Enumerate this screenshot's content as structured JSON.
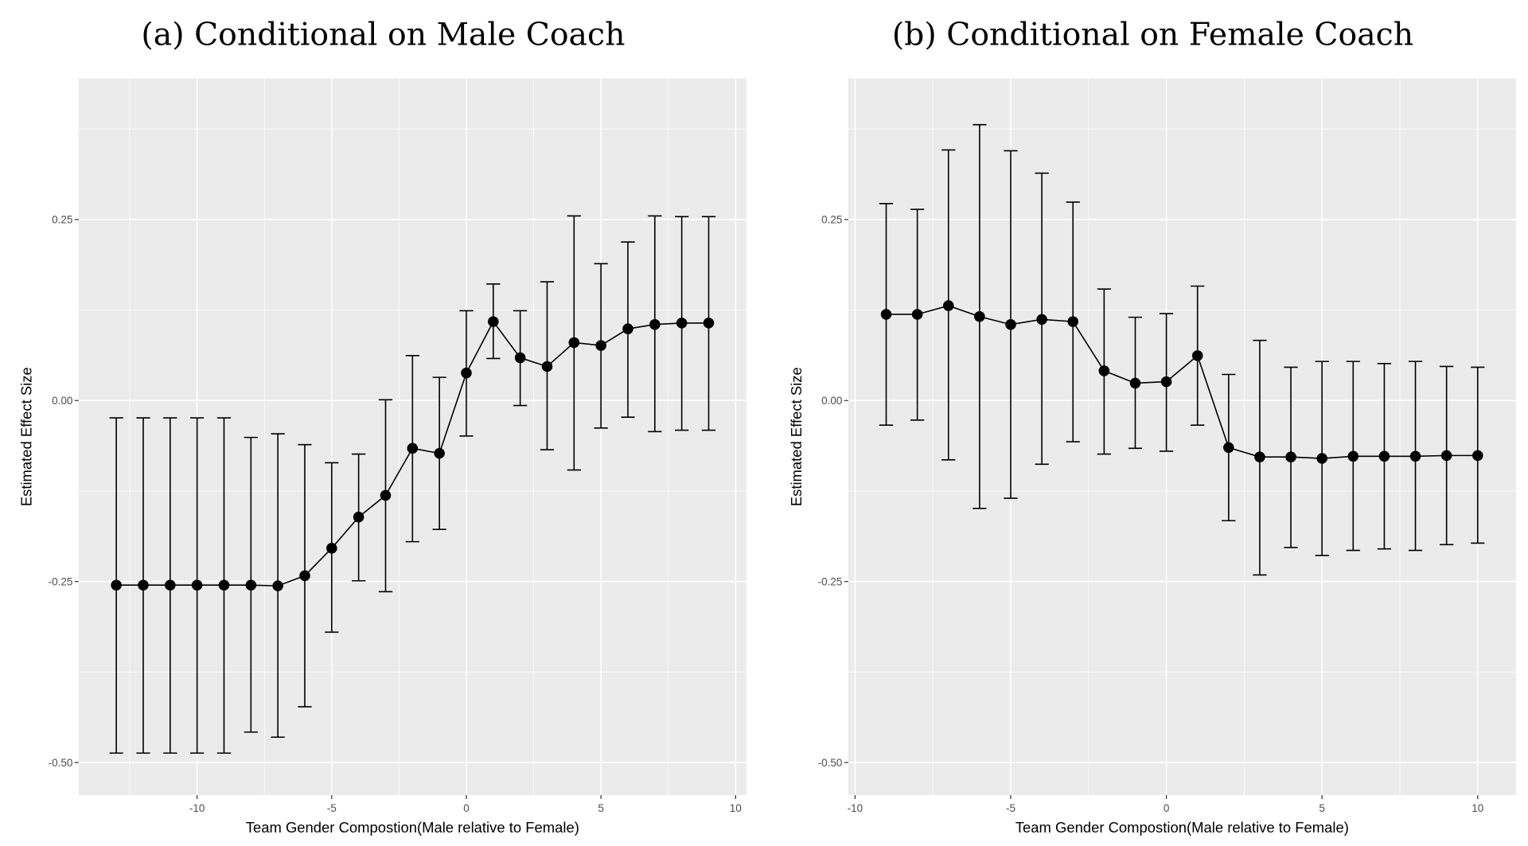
{
  "chart_data": [
    {
      "type": "line",
      "title": "(a) Conditional on Male Coach",
      "xlabel": "Team Gender Compostion(Male relative to Female)",
      "ylabel": "Estimated Effect Size",
      "xlim": [
        -14.4,
        10.4
      ],
      "ylim": [
        -0.545,
        0.445
      ],
      "xticks": [
        -10,
        -5,
        0,
        5,
        10
      ],
      "xtick_labels": [
        "-10",
        "-5",
        "0",
        "5",
        "10"
      ],
      "yticks": [
        -0.5,
        -0.25,
        0,
        0.25
      ],
      "ytick_labels": [
        "-0.50",
        "-0.25",
        "0.00",
        "0.25"
      ],
      "grid": true,
      "error_bars": true,
      "x": [
        -13,
        -12,
        -11,
        -10,
        -9,
        -8,
        -7,
        -6,
        -5,
        -4,
        -3,
        -2,
        -1,
        0,
        1,
        2,
        3,
        4,
        5,
        6,
        7,
        8,
        9
      ],
      "y": [
        -0.255,
        -0.255,
        -0.255,
        -0.255,
        -0.255,
        -0.255,
        -0.256,
        -0.242,
        -0.204,
        -0.161,
        -0.131,
        -0.066,
        -0.073,
        0.038,
        0.109,
        0.059,
        0.047,
        0.08,
        0.076,
        0.099,
        0.105,
        0.107,
        0.107
      ],
      "upper": [
        -0.024,
        -0.024,
        -0.024,
        -0.024,
        -0.024,
        -0.051,
        -0.046,
        -0.061,
        -0.086,
        -0.074,
        0.001,
        0.062,
        0.032,
        0.124,
        0.161,
        0.124,
        0.164,
        0.255,
        0.189,
        0.219,
        0.255,
        0.254,
        0.254
      ],
      "lower": [
        -0.487,
        -0.487,
        -0.487,
        -0.487,
        -0.487,
        -0.458,
        -0.465,
        -0.423,
        -0.32,
        -0.249,
        -0.264,
        -0.195,
        -0.178,
        -0.049,
        0.058,
        -0.007,
        -0.068,
        -0.096,
        -0.038,
        -0.023,
        -0.043,
        -0.041,
        -0.041
      ]
    },
    {
      "type": "line",
      "title": "(b) Conditional on Female Coach",
      "xlabel": "Team Gender Compostion(Male relative to Female)",
      "ylabel": "Estimated Effect Size",
      "xlim": [
        -10.22,
        11.23
      ],
      "ylim": [
        -0.545,
        0.445
      ],
      "xticks": [
        -10,
        -5,
        0,
        5,
        10
      ],
      "xtick_labels": [
        "-10",
        "-5",
        "0",
        "5",
        "10"
      ],
      "yticks": [
        -0.5,
        -0.25,
        0,
        0.25
      ],
      "ytick_labels": [
        "-0.50",
        "-0.25",
        "0.00",
        "0.25"
      ],
      "grid": true,
      "error_bars": true,
      "x": [
        -9,
        -8,
        -7,
        -6,
        -5,
        -4,
        -3,
        -2,
        -1,
        0,
        1,
        2,
        3,
        4,
        5,
        6,
        7,
        8,
        9,
        10
      ],
      "y": [
        0.119,
        0.119,
        0.131,
        0.116,
        0.105,
        0.112,
        0.109,
        0.041,
        0.024,
        0.026,
        0.062,
        -0.065,
        -0.078,
        -0.078,
        -0.08,
        -0.077,
        -0.077,
        -0.077,
        -0.076,
        -0.076
      ],
      "upper": [
        0.272,
        0.264,
        0.346,
        0.381,
        0.345,
        0.314,
        0.274,
        0.154,
        0.115,
        0.12,
        0.158,
        0.036,
        0.083,
        0.046,
        0.054,
        0.054,
        0.051,
        0.054,
        0.047,
        0.046
      ],
      "lower": [
        -0.034,
        -0.027,
        -0.082,
        -0.149,
        -0.135,
        -0.088,
        -0.057,
        -0.074,
        -0.066,
        -0.07,
        -0.034,
        -0.166,
        -0.241,
        -0.203,
        -0.214,
        -0.207,
        -0.205,
        -0.207,
        -0.199,
        -0.197
      ]
    }
  ],
  "colors": {
    "panel_bg": "#ebebeb",
    "grid": "#ffffff",
    "marks": "#000000"
  }
}
